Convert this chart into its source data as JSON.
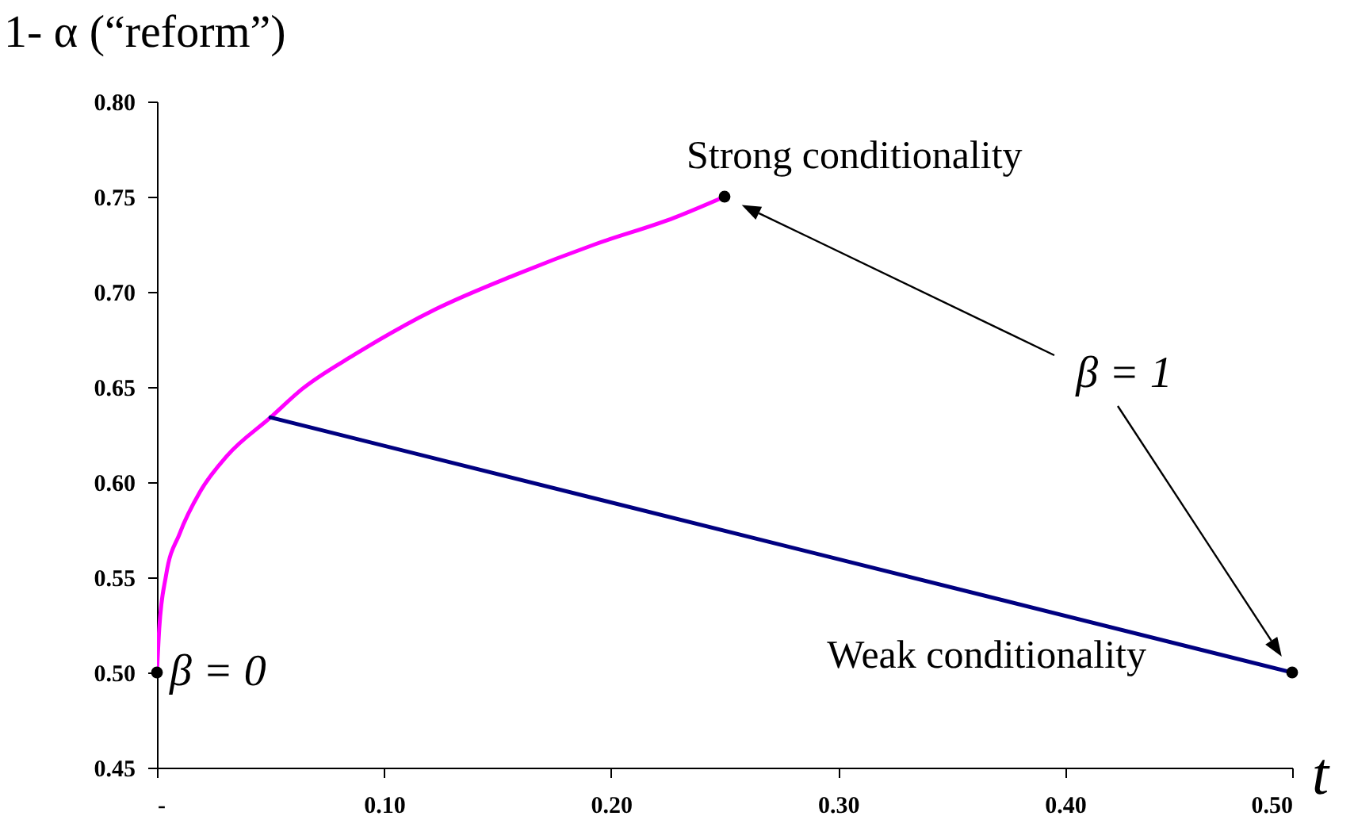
{
  "chart_data": {
    "type": "line",
    "xlabel": "t",
    "ylabel": "1- α (“reform”)",
    "xlim": [
      0,
      0.5
    ],
    "ylim": [
      0.45,
      0.8
    ],
    "xticks": [
      {
        "value": 0,
        "label": "-"
      },
      {
        "value": 0.1,
        "label": "0.10"
      },
      {
        "value": 0.2,
        "label": "0.20"
      },
      {
        "value": 0.3,
        "label": "0.30"
      },
      {
        "value": 0.4,
        "label": "0.40"
      },
      {
        "value": 0.5,
        "label": "0.50"
      }
    ],
    "yticks": [
      0.45,
      {
        "value": 0.5,
        "label": "0.50"
      },
      0.55,
      {
        "value": 0.6,
        "label": "0.60"
      },
      0.65,
      {
        "value": 0.7,
        "label": "0.70"
      },
      0.75,
      {
        "value": 0.8,
        "label": "0.80"
      }
    ],
    "grid": false,
    "series": [
      {
        "color": "#ff00ff",
        "marker": "none",
        "x": [
          0,
          0.001,
          0.004,
          0.01,
          0.019,
          0.031,
          0.05,
          0.064,
          0.087,
          0.123,
          0.158,
          0.193,
          0.228,
          0.25
        ],
        "values": [
          0.5,
          0.523,
          0.551,
          0.573,
          0.595,
          0.614,
          0.634,
          0.649,
          0.667,
          0.691,
          0.709,
          0.725,
          0.739,
          0.75
        ]
      },
      {
        "color": "#000080",
        "marker": "none",
        "x": [
          0.05,
          0.5
        ],
        "values": [
          0.634,
          0.5
        ]
      },
      {
        "type": "scatter",
        "color": "#000000",
        "marker": "circle",
        "x": [
          0,
          0.25,
          0.5
        ],
        "values": [
          0.5,
          0.75,
          0.5
        ]
      }
    ],
    "annotations": [
      {
        "text": "Strong conditionality",
        "x": 0.25,
        "y": 0.75
      },
      "β = 1",
      "Weak conditionality",
      {
        "text": "β = 0",
        "x": 0,
        "y": 0.5
      }
    ]
  }
}
